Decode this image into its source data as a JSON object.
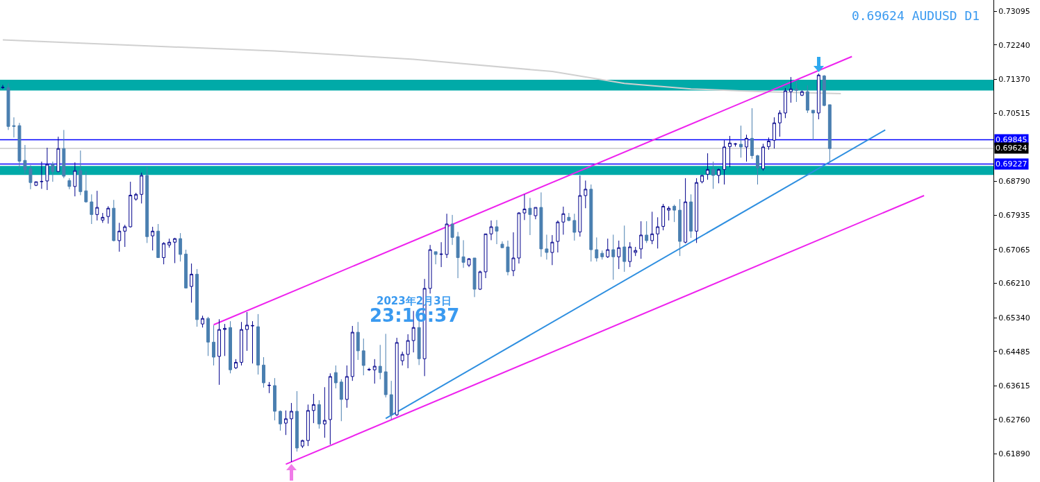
{
  "chart_data": {
    "type": "candlestick",
    "title": "0.69624 AUDUSD D1",
    "annotations": [
      "2023年2月3日",
      "23:16:37"
    ],
    "categories": [
      null,
      null,
      null,
      null,
      null,
      null,
      null,
      null,
      null,
      null,
      null,
      null,
      null,
      null,
      null,
      null,
      null,
      null,
      null,
      null,
      null,
      null,
      null,
      null,
      null,
      null,
      null,
      null,
      null,
      null,
      null,
      null,
      null,
      null,
      null,
      null,
      null,
      null,
      null,
      null,
      null,
      null,
      null,
      null,
      null,
      null,
      null,
      null,
      null,
      null,
      null,
      null,
      null,
      null,
      null,
      null,
      null,
      null,
      null,
      null,
      null,
      null,
      null,
      null,
      null,
      null,
      null,
      null,
      null,
      null,
      null,
      null,
      null,
      null,
      null,
      null,
      null,
      null,
      null,
      null,
      null,
      null,
      null,
      null,
      null,
      null,
      null,
      null,
      null,
      null,
      null,
      null,
      null,
      null,
      null,
      null,
      null,
      null,
      null,
      null,
      null,
      null,
      null,
      null,
      null,
      null,
      null,
      null,
      null,
      null,
      null,
      null,
      null,
      null,
      null,
      null,
      null,
      null,
      null,
      null,
      null,
      null,
      null,
      null,
      null,
      null,
      null,
      null,
      null,
      null,
      null,
      null,
      null,
      null,
      null,
      null,
      null,
      null,
      null,
      null,
      null,
      null,
      null,
      null,
      null,
      null,
      null,
      null,
      null,
      null,
      null,
      null,
      null,
      null,
      null,
      null,
      null,
      null,
      null,
      null,
      null,
      null,
      null,
      null,
      null,
      null,
      null,
      null,
      null,
      null,
      null,
      null,
      null,
      null,
      null,
      null,
      null,
      null,
      null
    ],
    "ohlc": [
      [
        0.7116,
        0.7123,
        0.7113,
        0.7117
      ],
      [
        0.7116,
        0.7127,
        0.7009,
        0.7018
      ],
      [
        0.702,
        0.7041,
        0.699,
        0.7018
      ],
      [
        0.702,
        0.7027,
        0.6911,
        0.693
      ],
      [
        0.6932,
        0.6971,
        0.6897,
        0.6909
      ],
      [
        0.6911,
        0.692,
        0.6859,
        0.6876
      ],
      [
        0.6869,
        0.6878,
        0.6867,
        0.6878
      ],
      [
        0.6878,
        0.6929,
        0.686,
        0.6879
      ],
      [
        0.688,
        0.6964,
        0.6857,
        0.6922
      ],
      [
        0.6922,
        0.6929,
        0.6878,
        0.6904
      ],
      [
        0.6904,
        0.6992,
        0.6902,
        0.6962
      ],
      [
        0.6962,
        0.7009,
        0.6887,
        0.6892
      ],
      [
        0.6881,
        0.6887,
        0.6859,
        0.6866
      ],
      [
        0.6866,
        0.6927,
        0.6841,
        0.6906
      ],
      [
        0.6906,
        0.6957,
        0.6844,
        0.6853
      ],
      [
        0.6855,
        0.6904,
        0.6825,
        0.6827
      ],
      [
        0.6827,
        0.6846,
        0.6771,
        0.6795
      ],
      [
        0.6795,
        0.6855,
        0.678,
        0.6813
      ],
      [
        0.6781,
        0.6799,
        0.6774,
        0.6788
      ],
      [
        0.679,
        0.6816,
        0.6772,
        0.6811
      ],
      [
        0.6811,
        0.6832,
        0.6727,
        0.6729
      ],
      [
        0.6729,
        0.6774,
        0.6701,
        0.6753
      ],
      [
        0.6753,
        0.6769,
        0.6713,
        0.6764
      ],
      [
        0.6764,
        0.6878,
        0.6762,
        0.6844
      ],
      [
        0.6834,
        0.685,
        0.683,
        0.6846
      ],
      [
        0.6846,
        0.6901,
        0.6823,
        0.6894
      ],
      [
        0.6894,
        0.6916,
        0.6723,
        0.6739
      ],
      [
        0.6741,
        0.6764,
        0.6704,
        0.6753
      ],
      [
        0.6753,
        0.6771,
        0.6685,
        0.6686
      ],
      [
        0.6686,
        0.6725,
        0.6669,
        0.6722
      ],
      [
        0.6718,
        0.6734,
        0.6711,
        0.6725
      ],
      [
        0.6725,
        0.6736,
        0.6672,
        0.6734
      ],
      [
        0.6734,
        0.6748,
        0.6676,
        0.6694
      ],
      [
        0.6695,
        0.6706,
        0.6608,
        0.6609
      ],
      [
        0.6613,
        0.6671,
        0.6572,
        0.6644
      ],
      [
        0.6644,
        0.6657,
        0.6511,
        0.6529
      ],
      [
        0.6518,
        0.6539,
        0.6509,
        0.6532
      ],
      [
        0.6532,
        0.6536,
        0.6437,
        0.6472
      ],
      [
        0.6472,
        0.6515,
        0.6413,
        0.6434
      ],
      [
        0.6436,
        0.653,
        0.6364,
        0.6504
      ],
      [
        0.6504,
        0.6518,
        0.6437,
        0.6507
      ],
      [
        0.6509,
        0.6525,
        0.6393,
        0.6402
      ],
      [
        0.6407,
        0.6429,
        0.6404,
        0.6421
      ],
      [
        0.6421,
        0.6523,
        0.6413,
        0.6504
      ],
      [
        0.6504,
        0.6548,
        0.645,
        0.6515
      ],
      [
        0.6513,
        0.6525,
        0.6418,
        0.6514
      ],
      [
        0.6511,
        0.6543,
        0.639,
        0.6414
      ],
      [
        0.6414,
        0.6434,
        0.6357,
        0.6369
      ],
      [
        0.6362,
        0.6371,
        0.6343,
        0.6363
      ],
      [
        0.6362,
        0.6381,
        0.6274,
        0.6297
      ],
      [
        0.6297,
        0.6299,
        0.6248,
        0.6265
      ],
      [
        0.6267,
        0.6299,
        0.6237,
        0.6278
      ],
      [
        0.6278,
        0.6318,
        0.6169,
        0.6297
      ],
      [
        0.6297,
        0.6348,
        0.6195,
        0.6204
      ],
      [
        0.6209,
        0.6225,
        0.6204,
        0.6223
      ],
      [
        0.6223,
        0.6314,
        0.6209,
        0.6299
      ],
      [
        0.6299,
        0.6341,
        0.6267,
        0.6314
      ],
      [
        0.6314,
        0.6325,
        0.6253,
        0.6265
      ],
      [
        0.6265,
        0.6358,
        0.623,
        0.6274
      ],
      [
        0.6276,
        0.6393,
        0.6213,
        0.6385
      ],
      [
        0.6395,
        0.6413,
        0.6355,
        0.6369
      ],
      [
        0.6371,
        0.6378,
        0.6272,
        0.6327
      ],
      [
        0.6327,
        0.6413,
        0.6306,
        0.6385
      ],
      [
        0.6385,
        0.6513,
        0.6374,
        0.6497
      ],
      [
        0.6497,
        0.6523,
        0.6427,
        0.645
      ],
      [
        0.645,
        0.6481,
        0.6388,
        0.6413
      ],
      [
        0.6402,
        0.6407,
        0.6399,
        0.6403
      ],
      [
        0.6402,
        0.6429,
        0.6367,
        0.6411
      ],
      [
        0.6411,
        0.6465,
        0.6378,
        0.6395
      ],
      [
        0.6397,
        0.6493,
        0.6332,
        0.6339
      ],
      [
        0.6339,
        0.6374,
        0.6276,
        0.6288
      ],
      [
        0.6288,
        0.6483,
        0.6285,
        0.6471
      ],
      [
        0.6425,
        0.6448,
        0.6413,
        0.6441
      ],
      [
        0.6441,
        0.6492,
        0.6406,
        0.6476
      ],
      [
        0.6476,
        0.6551,
        0.6446,
        0.6509
      ],
      [
        0.6509,
        0.6525,
        0.6414,
        0.643
      ],
      [
        0.643,
        0.6632,
        0.6386,
        0.6608
      ],
      [
        0.6608,
        0.6718,
        0.6595,
        0.6706
      ],
      [
        0.6701,
        0.6701,
        0.6669,
        0.6694
      ],
      [
        0.6694,
        0.6725,
        0.6662,
        0.6695
      ],
      [
        0.6694,
        0.6797,
        0.6685,
        0.6771
      ],
      [
        0.6771,
        0.6794,
        0.6718,
        0.6737
      ],
      [
        0.6739,
        0.6751,
        0.6634,
        0.6686
      ],
      [
        0.6688,
        0.673,
        0.666,
        0.6674
      ],
      [
        0.6667,
        0.6685,
        0.6662,
        0.6683
      ],
      [
        0.6685,
        0.6685,
        0.6586,
        0.6606
      ],
      [
        0.6606,
        0.6653,
        0.6604,
        0.665
      ],
      [
        0.665,
        0.6746,
        0.6634,
        0.6746
      ],
      [
        0.6746,
        0.678,
        0.673,
        0.6764
      ],
      [
        0.6764,
        0.6781,
        0.672,
        0.6753
      ],
      [
        0.672,
        0.6727,
        0.6711,
        0.6711
      ],
      [
        0.6713,
        0.6729,
        0.6641,
        0.665
      ],
      [
        0.6653,
        0.675,
        0.6639,
        0.6685
      ],
      [
        0.6685,
        0.6801,
        0.6671,
        0.6799
      ],
      [
        0.6799,
        0.6846,
        0.6781,
        0.6809
      ],
      [
        0.6811,
        0.6837,
        0.6743,
        0.6795
      ],
      [
        0.6792,
        0.6813,
        0.6783,
        0.6813
      ],
      [
        0.6813,
        0.6851,
        0.6688,
        0.6708
      ],
      [
        0.6708,
        0.6744,
        0.6681,
        0.6699
      ],
      [
        0.6699,
        0.6743,
        0.6667,
        0.6725
      ],
      [
        0.6727,
        0.678,
        0.6699,
        0.6776
      ],
      [
        0.6776,
        0.6815,
        0.6744,
        0.6797
      ],
      [
        0.6788,
        0.6799,
        0.6778,
        0.678
      ],
      [
        0.678,
        0.6797,
        0.6729,
        0.675
      ],
      [
        0.6751,
        0.6894,
        0.6739,
        0.6843
      ],
      [
        0.6843,
        0.6881,
        0.6811,
        0.6859
      ],
      [
        0.6859,
        0.6871,
        0.6676,
        0.6706
      ],
      [
        0.6706,
        0.6737,
        0.6676,
        0.6685
      ],
      [
        0.6697,
        0.6704,
        0.6681,
        0.6688
      ],
      [
        0.6688,
        0.6734,
        0.6685,
        0.6706
      ],
      [
        0.6706,
        0.6744,
        0.663,
        0.6688
      ],
      [
        0.6688,
        0.6729,
        0.6657,
        0.6711
      ],
      [
        0.6713,
        0.6767,
        0.665,
        0.6676
      ],
      [
        0.6676,
        0.6725,
        0.6662,
        0.6713
      ],
      [
        0.6699,
        0.6713,
        0.669,
        0.6704
      ],
      [
        0.6708,
        0.6778,
        0.6683,
        0.6743
      ],
      [
        0.6743,
        0.6778,
        0.6723,
        0.6729
      ],
      [
        0.6729,
        0.6802,
        0.672,
        0.6746
      ],
      [
        0.6746,
        0.6788,
        0.6709,
        0.6764
      ],
      [
        0.6765,
        0.6822,
        0.6755,
        0.6816
      ],
      [
        0.6806,
        0.6816,
        0.678,
        0.6811
      ],
      [
        0.6816,
        0.682,
        0.6776,
        0.6806
      ],
      [
        0.6806,
        0.6834,
        0.669,
        0.6727
      ],
      [
        0.6725,
        0.6887,
        0.6722,
        0.6827
      ],
      [
        0.6827,
        0.6846,
        0.6736,
        0.6753
      ],
      [
        0.6753,
        0.6887,
        0.6723,
        0.6876
      ],
      [
        0.6878,
        0.6895,
        0.6874,
        0.6894
      ],
      [
        0.6897,
        0.695,
        0.6883,
        0.6909
      ],
      [
        0.6909,
        0.6929,
        0.686,
        0.6894
      ],
      [
        0.6894,
        0.6911,
        0.6874,
        0.6909
      ],
      [
        0.6909,
        0.6983,
        0.6871,
        0.6966
      ],
      [
        0.6967,
        0.6994,
        0.6915,
        0.6976
      ],
      [
        0.6973,
        0.6976,
        0.6967,
        0.6974
      ],
      [
        0.6973,
        0.702,
        0.6939,
        0.6966
      ],
      [
        0.6966,
        0.6997,
        0.6929,
        0.6988
      ],
      [
        0.6988,
        0.7064,
        0.6936,
        0.6944
      ],
      [
        0.6944,
        0.6946,
        0.6871,
        0.6913
      ],
      [
        0.6911,
        0.6974,
        0.6906,
        0.6966
      ],
      [
        0.6967,
        0.699,
        0.6959,
        0.6981
      ],
      [
        0.6983,
        0.7041,
        0.6962,
        0.7027
      ],
      [
        0.7027,
        0.7059,
        0.6992,
        0.7052
      ],
      [
        0.7052,
        0.7115,
        0.7039,
        0.7108
      ],
      [
        0.7106,
        0.7143,
        0.7078,
        0.7113
      ],
      [
        0.7113,
        0.7131,
        0.708,
        0.7109
      ],
      [
        0.7097,
        0.7109,
        0.7095,
        0.7106
      ],
      [
        0.7106,
        0.7122,
        0.7052,
        0.7059
      ],
      [
        0.7059,
        0.7059,
        0.6983,
        0.7052
      ],
      [
        0.7052,
        0.7152,
        0.7036,
        0.7148
      ],
      [
        0.7146,
        0.7148,
        0.7069,
        0.7071
      ],
      [
        0.7073,
        0.7073,
        0.6927,
        0.6962
      ],
      null,
      null,
      null,
      null,
      null,
      null,
      null,
      null,
      null,
      null,
      null,
      null,
      null,
      null,
      null,
      null,
      null,
      null,
      null,
      null,
      null,
      null,
      null,
      null,
      null,
      null,
      null,
      null,
      null
    ],
    "series": [
      {
        "type": "line",
        "color": "#d0d0d0",
        "values": [
          0.7237,
          null,
          null,
          null,
          null,
          null,
          null,
          null,
          null,
          null,
          null,
          null,
          null,
          null,
          null,
          null,
          null,
          null,
          null,
          null,
          null,
          null,
          null,
          null,
          0.7223,
          null,
          null,
          null,
          null,
          null,
          null,
          null,
          null,
          null,
          null,
          null,
          null,
          null,
          null,
          null,
          null,
          null,
          null,
          null,
          null,
          null,
          null,
          null,
          null,
          0.7209,
          null,
          null,
          null,
          null,
          null,
          null,
          null,
          null,
          null,
          null,
          null,
          null,
          null,
          null,
          null,
          null,
          null,
          null,
          null,
          null,
          null,
          null,
          null,
          null,
          0.7188,
          null,
          null,
          null,
          null,
          null,
          null,
          null,
          null,
          null,
          null,
          null,
          null,
          null,
          null,
          null,
          null,
          null,
          null,
          null,
          null,
          null,
          null,
          null,
          null,
          0.7157,
          null,
          null,
          null,
          null,
          null,
          null,
          null,
          null,
          null,
          null,
          null,
          null,
          0.7127,
          null,
          null,
          null,
          null,
          null,
          null,
          null,
          null,
          null,
          null,
          null,
          0.7113,
          null,
          null,
          null,
          null,
          null,
          null,
          null,
          null,
          null,
          null,
          null,
          null,
          0.7106,
          null,
          null,
          null,
          null,
          null,
          null,
          null,
          null,
          null,
          null,
          null,
          null,
          null,
          0.7101,
          null,
          null,
          null,
          null,
          null,
          null,
          null,
          null,
          null,
          null,
          null,
          null,
          null,
          null,
          null,
          null,
          null,
          null,
          null,
          null,
          null,
          null,
          null,
          null,
          null,
          null,
          null
        ]
      },
      {
        "type": "line",
        "color": "#ee22ee",
        "values": [
          null,
          null,
          null,
          null,
          null,
          null,
          null,
          null,
          null,
          null,
          null,
          null,
          null,
          null,
          null,
          null,
          null,
          null,
          null,
          null,
          null,
          null,
          null,
          null,
          null,
          null,
          null,
          null,
          null,
          null,
          null,
          null,
          null,
          null,
          null,
          null,
          null,
          null,
          0.6516,
          null,
          null,
          null,
          null,
          null,
          null,
          null,
          null,
          null,
          null,
          null,
          null,
          null,
          null,
          null,
          null,
          null,
          null,
          null,
          null,
          null,
          null,
          null,
          null,
          null,
          null,
          null,
          null,
          null,
          null,
          null,
          null,
          null,
          null,
          null,
          null,
          null,
          null,
          null,
          null,
          null,
          null,
          null,
          null,
          null,
          null,
          null,
          null,
          null,
          null,
          null,
          null,
          null,
          null,
          null,
          null,
          null,
          null,
          null,
          null,
          null,
          null,
          null,
          null,
          null,
          null,
          null,
          null,
          null,
          null,
          null,
          null,
          null,
          null,
          null,
          null,
          null,
          null,
          null,
          null,
          null,
          null,
          null,
          null,
          null,
          null,
          null,
          null,
          null,
          null,
          null,
          null,
          null,
          null,
          null,
          null,
          null,
          null,
          null,
          null,
          null,
          null,
          null,
          null,
          null,
          null,
          null,
          null,
          null,
          null,
          null,
          null,
          null,
          null,
          0.7195,
          null,
          null,
          null,
          null,
          null,
          null,
          null,
          null,
          null,
          null,
          null,
          null,
          null,
          null,
          null,
          null,
          null,
          null,
          null,
          null,
          null,
          null,
          null,
          null,
          null
        ]
      },
      {
        "type": "line",
        "color": "#ee22ee",
        "values": [
          null,
          null,
          null,
          null,
          null,
          null,
          null,
          null,
          null,
          null,
          null,
          null,
          null,
          null,
          null,
          null,
          null,
          null,
          null,
          null,
          null,
          null,
          null,
          null,
          null,
          null,
          null,
          null,
          null,
          null,
          null,
          null,
          null,
          null,
          null,
          null,
          null,
          null,
          null,
          null,
          null,
          null,
          null,
          null,
          null,
          null,
          null,
          null,
          null,
          null,
          null,
          0.6163,
          null,
          null,
          null,
          null,
          null,
          null,
          null,
          null,
          null,
          null,
          null,
          null,
          null,
          null,
          null,
          null,
          null,
          null,
          null,
          null,
          null,
          null,
          null,
          null,
          null,
          null,
          null,
          null,
          null,
          null,
          null,
          null,
          null,
          null,
          null,
          null,
          null,
          null,
          null,
          null,
          null,
          null,
          null,
          null,
          null,
          null,
          null,
          null,
          null,
          null,
          null,
          null,
          null,
          null,
          null,
          null,
          null,
          null,
          null,
          null,
          null,
          null,
          null,
          null,
          null,
          null,
          null,
          null,
          null,
          null,
          null,
          null,
          null,
          null,
          null,
          null,
          null,
          null,
          null,
          null,
          null,
          null,
          null,
          null,
          null,
          null,
          null,
          null,
          null,
          null,
          null,
          null,
          null,
          null,
          null,
          null,
          null,
          null,
          null,
          null,
          null,
          null,
          null,
          null,
          null,
          null,
          null,
          null,
          null,
          null,
          null,
          null,
          null,
          null,
          0.6843,
          null,
          null,
          null,
          null,
          null,
          null,
          null,
          null,
          null,
          null,
          null,
          null
        ]
      },
      {
        "type": "line",
        "color": "#2e8fe0",
        "values": [
          null,
          null,
          null,
          null,
          null,
          null,
          null,
          null,
          null,
          null,
          null,
          null,
          null,
          null,
          null,
          null,
          null,
          null,
          null,
          null,
          null,
          null,
          null,
          null,
          null,
          null,
          null,
          null,
          null,
          null,
          null,
          null,
          null,
          null,
          null,
          null,
          null,
          null,
          null,
          null,
          null,
          null,
          null,
          null,
          null,
          null,
          null,
          null,
          null,
          null,
          null,
          null,
          null,
          null,
          null,
          null,
          null,
          null,
          null,
          null,
          null,
          null,
          null,
          null,
          null,
          null,
          null,
          null,
          null,
          0.6279,
          null,
          null,
          null,
          null,
          null,
          null,
          null,
          null,
          null,
          null,
          null,
          null,
          null,
          null,
          null,
          null,
          null,
          null,
          null,
          null,
          null,
          null,
          null,
          null,
          null,
          null,
          null,
          null,
          null,
          null,
          null,
          null,
          null,
          null,
          null,
          null,
          null,
          null,
          null,
          null,
          null,
          null,
          null,
          null,
          null,
          null,
          null,
          null,
          null,
          null,
          null,
          null,
          null,
          null,
          null,
          null,
          null,
          null,
          null,
          null,
          null,
          null,
          null,
          null,
          null,
          null,
          null,
          null,
          null,
          null,
          null,
          null,
          null,
          null,
          null,
          null,
          null,
          null,
          null,
          null,
          null,
          null,
          null,
          null,
          null,
          null,
          null,
          null,
          null,
          0.7009,
          null,
          null,
          null,
          null,
          null,
          null,
          null,
          null,
          null,
          null,
          null,
          null,
          null,
          null,
          null,
          null,
          null,
          null,
          null
        ]
      }
    ],
    "ref_lines": [
      {
        "axis": "y",
        "value": 0.69845,
        "label": "0.69845",
        "color": "#0000ff"
      },
      {
        "axis": "y",
        "value": 0.69624,
        "label": "0.69624",
        "color": "#c8c8c8"
      },
      {
        "axis": "y",
        "value": 0.69227,
        "label": "0.69227",
        "color": "#0000ff"
      }
    ],
    "bands": [
      {
        "axis": "y",
        "from": 0.7109,
        "to": 0.7136,
        "color": "#00aaa8"
      },
      {
        "axis": "y",
        "from": 0.6895,
        "to": 0.6918,
        "color": "#00aaa8"
      }
    ],
    "ylim": [
      0.6118,
      0.7338
    ],
    "yticks": [
      0.73095,
      {
        "value": 0.7224,
        "label": "0.72240"
      },
      {
        "value": 0.7137,
        "label": "0.71370"
      },
      0.70515,
      {
        "value": 0.6879,
        "label": "0.68790"
      },
      0.67935,
      0.67065,
      {
        "value": 0.6621,
        "label": "0.66210"
      },
      {
        "value": 0.6534,
        "label": "0.65340"
      },
      0.64485,
      0.63615,
      {
        "value": 0.6276,
        "label": "0.62760"
      },
      {
        "value": 0.6189,
        "label": "0.61890"
      }
    ],
    "tick_labels": "y",
    "grid": false
  }
}
